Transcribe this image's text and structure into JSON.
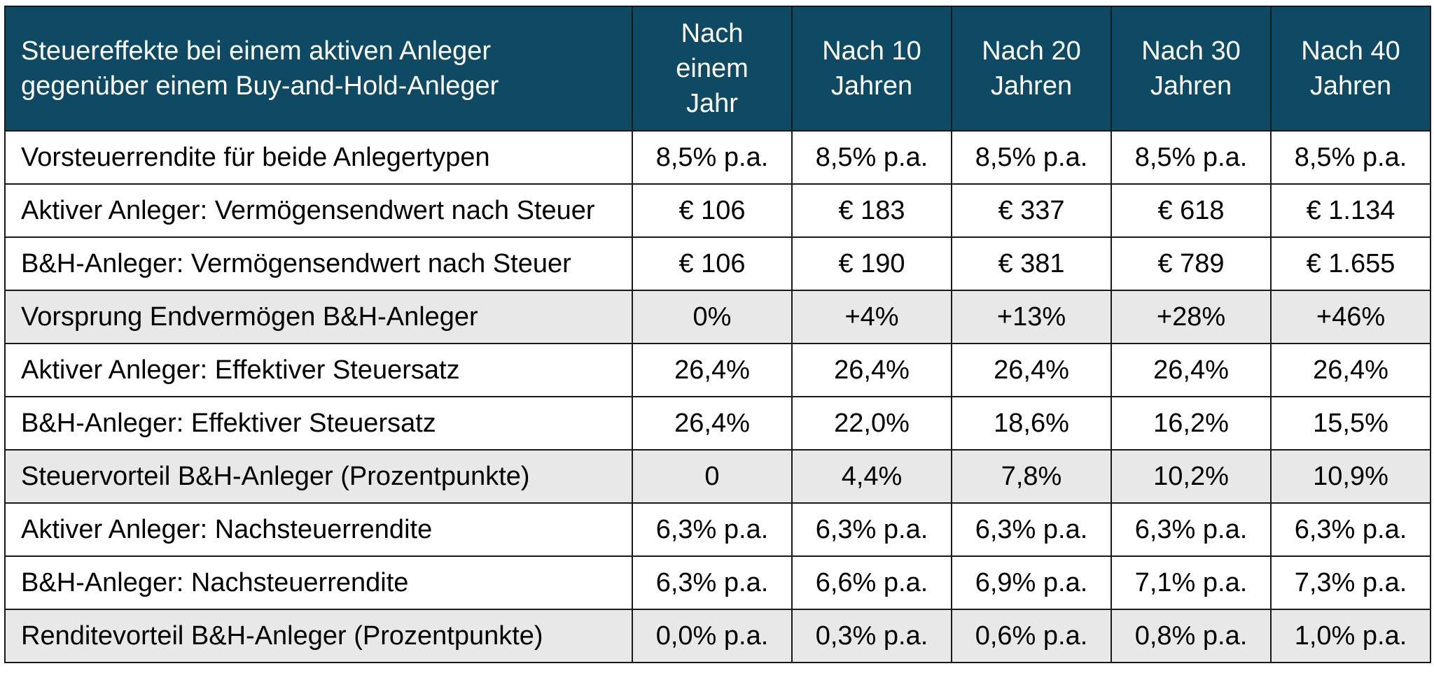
{
  "header": {
    "title_line1": "Steuereffekte bei einem aktiven Anleger",
    "title_line2": "gegenüber einem Buy-and-Hold-Anleger",
    "columns": [
      {
        "line1": "Nach",
        "line2": "einem",
        "line3": "Jahr"
      },
      {
        "line1": "Nach 10",
        "line2": "Jahren"
      },
      {
        "line1": "Nach 20",
        "line2": "Jahren"
      },
      {
        "line1": "Nach 30",
        "line2": "Jahren"
      },
      {
        "line1": "Nach 40",
        "line2": "Jahren"
      }
    ]
  },
  "rows": [
    {
      "label": "Vorsteuerrendite für beide Anlegertypen",
      "shaded": false,
      "values": [
        "8,5% p.a.",
        "8,5% p.a.",
        "8,5% p.a.",
        "8,5% p.a.",
        "8,5% p.a."
      ]
    },
    {
      "label": "Aktiver Anleger: Vermögensendwert nach Steuer",
      "shaded": false,
      "values": [
        "€ 106",
        "€ 183",
        "€ 337",
        "€ 618",
        "€ 1.134"
      ]
    },
    {
      "label": "B&H-Anleger: Vermögensendwert nach Steuer",
      "shaded": false,
      "values": [
        "€ 106",
        "€ 190",
        "€ 381",
        "€ 789",
        "€ 1.655"
      ]
    },
    {
      "label": "Vorsprung Endvermögen B&H-Anleger",
      "shaded": true,
      "values": [
        "0%",
        "+4%",
        "+13%",
        "+28%",
        "+46%"
      ]
    },
    {
      "label": "Aktiver Anleger: Effektiver Steuersatz",
      "shaded": false,
      "values": [
        "26,4%",
        "26,4%",
        "26,4%",
        "26,4%",
        "26,4%"
      ]
    },
    {
      "label": "B&H-Anleger: Effektiver Steuersatz",
      "shaded": false,
      "values": [
        "26,4%",
        "22,0%",
        "18,6%",
        "16,2%",
        "15,5%"
      ]
    },
    {
      "label": "Steuervorteil B&H-Anleger (Prozentpunkte)",
      "shaded": true,
      "values": [
        "0",
        "4,4%",
        "7,8%",
        "10,2%",
        "10,9%"
      ]
    },
    {
      "label": "Aktiver Anleger: Nachsteuerrendite",
      "shaded": false,
      "values": [
        "6,3% p.a.",
        "6,3% p.a.",
        "6,3% p.a.",
        "6,3% p.a.",
        "6,3% p.a."
      ]
    },
    {
      "label": "B&H-Anleger: Nachsteuerrendite",
      "shaded": false,
      "values": [
        "6,3% p.a.",
        "6,6% p.a.",
        "6,9% p.a.",
        "7,1% p.a.",
        "7,3% p.a."
      ]
    },
    {
      "label": "Renditevorteil B&H-Anleger (Prozentpunkte)",
      "shaded": true,
      "values": [
        "0,0% p.a.",
        "0,3% p.a.",
        "0,6% p.a.",
        "0,8% p.a.",
        "1,0% p.a."
      ]
    }
  ],
  "colors": {
    "header_bg": "#0e4a64",
    "shaded_row_bg": "#e8e8e8",
    "border": "#1a1a1a"
  }
}
